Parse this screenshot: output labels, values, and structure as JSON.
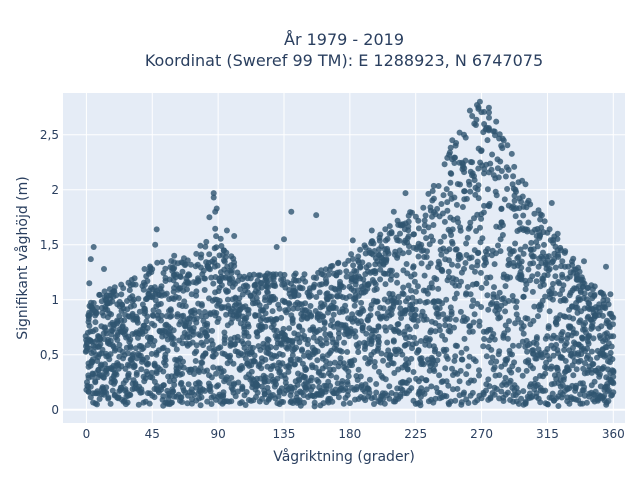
{
  "chart_data": {
    "type": "scatter",
    "title": "År 1979 - 2019",
    "subtitle": "Koordinat (Sweref 99 TM): E 1288923, N 6747075",
    "xlabel": "Vågriktning (grader)",
    "ylabel": "Signifikant våghöjd (m)",
    "xlim": [
      -16,
      368
    ],
    "ylim": [
      -0.12,
      2.88
    ],
    "xticks": [
      0,
      45,
      90,
      135,
      180,
      225,
      270,
      315,
      360
    ],
    "xtick_labels": [
      "0",
      "45",
      "90",
      "135",
      "180",
      "225",
      "270",
      "315",
      "360"
    ],
    "yticks": [
      0,
      0.5,
      1,
      1.5,
      2,
      2.5
    ],
    "ytick_labels": [
      "0",
      "0,5",
      "1",
      "1,5",
      "2",
      "2,5"
    ],
    "grid": true,
    "marker_color": "#2f5570",
    "background_color": "#e5ecf6",
    "envelope_x": [
      0,
      10,
      20,
      30,
      40,
      50,
      60,
      70,
      80,
      88,
      95,
      105,
      120,
      135,
      150,
      165,
      180,
      195,
      210,
      225,
      240,
      252,
      262,
      270,
      278,
      290,
      300,
      315,
      330,
      345,
      360
    ],
    "envelope_ymax": [
      0.8,
      0.9,
      0.95,
      1.0,
      1.1,
      1.15,
      1.15,
      1.2,
      1.3,
      1.45,
      1.25,
      1.1,
      1.05,
      1.05,
      1.05,
      1.1,
      1.2,
      1.3,
      1.45,
      1.55,
      1.8,
      2.1,
      2.3,
      2.4,
      2.3,
      2.0,
      1.7,
      1.45,
      1.2,
      1.0,
      0.85
    ],
    "outliers": [
      {
        "x": 3,
        "y": 1.37
      },
      {
        "x": 5,
        "y": 1.48
      },
      {
        "x": 2,
        "y": 1.15
      },
      {
        "x": 12,
        "y": 1.28
      },
      {
        "x": 48,
        "y": 1.64
      },
      {
        "x": 47,
        "y": 1.5
      },
      {
        "x": 60,
        "y": 1.4
      },
      {
        "x": 84,
        "y": 1.75
      },
      {
        "x": 87,
        "y": 1.97
      },
      {
        "x": 87,
        "y": 1.93
      },
      {
        "x": 89,
        "y": 1.83
      },
      {
        "x": 88,
        "y": 1.8
      },
      {
        "x": 96,
        "y": 1.63
      },
      {
        "x": 101,
        "y": 1.58
      },
      {
        "x": 130,
        "y": 1.48
      },
      {
        "x": 140,
        "y": 1.8
      },
      {
        "x": 157,
        "y": 1.77
      },
      {
        "x": 135,
        "y": 1.55
      },
      {
        "x": 182,
        "y": 1.54
      },
      {
        "x": 195,
        "y": 1.63
      },
      {
        "x": 218,
        "y": 1.97
      },
      {
        "x": 210,
        "y": 1.8
      },
      {
        "x": 250,
        "y": 2.45
      },
      {
        "x": 255,
        "y": 2.52
      },
      {
        "x": 262,
        "y": 2.72
      },
      {
        "x": 268,
        "y": 2.75
      },
      {
        "x": 265,
        "y": 2.6
      },
      {
        "x": 275,
        "y": 2.55
      },
      {
        "x": 280,
        "y": 2.62
      },
      {
        "x": 258,
        "y": 2.5
      },
      {
        "x": 300,
        "y": 2.05
      },
      {
        "x": 310,
        "y": 1.73
      },
      {
        "x": 318,
        "y": 1.88
      },
      {
        "x": 322,
        "y": 1.6
      },
      {
        "x": 340,
        "y": 1.35
      },
      {
        "x": 355,
        "y": 1.3
      },
      {
        "x": 358,
        "y": 1.05
      }
    ]
  }
}
